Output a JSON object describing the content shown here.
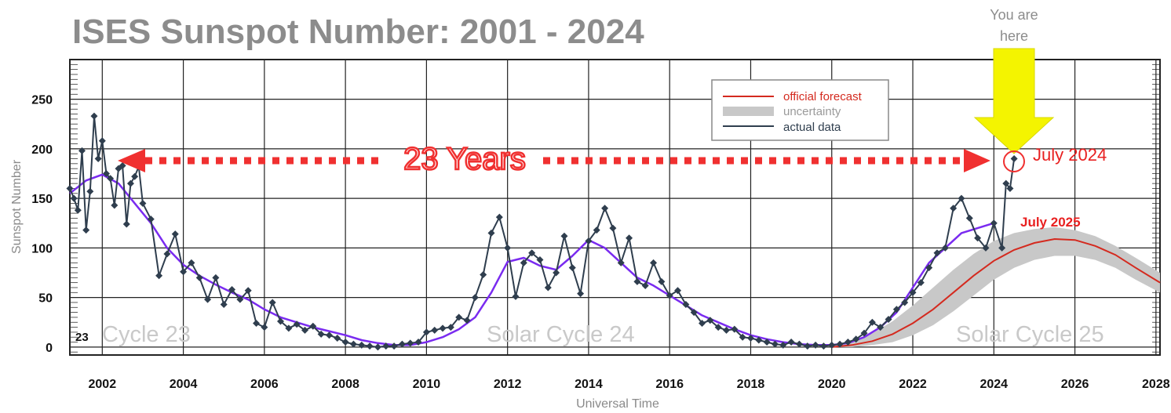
{
  "chart_data": {
    "type": "line",
    "title": "ISES Sunspot Number: 2001 - 2024",
    "xlabel": "Universal Time",
    "ylabel": "Sunspot Number",
    "xlim": [
      2001.2,
      2028.1
    ],
    "ylim": [
      -8,
      290
    ],
    "x_ticks": [
      "2002",
      "2004",
      "2006",
      "2008",
      "2010",
      "2012",
      "2014",
      "2016",
      "2018",
      "2020",
      "2022",
      "2024",
      "2026",
      "2028"
    ],
    "y_ticks": [
      "0",
      "50",
      "100",
      "150",
      "200",
      "250"
    ],
    "grid": true,
    "legend_position": "top-right",
    "legend": [
      {
        "label": "official forecast",
        "color": "#d42a1f"
      },
      {
        "label": "uncertainty",
        "color": "#c8c8c8"
      },
      {
        "label": "actual data",
        "color": "#2f3e4e"
      }
    ],
    "series": [
      {
        "name": "actual data",
        "color": "#2f3e4e",
        "x": [
          2001.2,
          2001.3,
          2001.4,
          2001.5,
          2001.6,
          2001.7,
          2001.8,
          2001.9,
          2002.0,
          2002.1,
          2002.2,
          2002.3,
          2002.4,
          2002.5,
          2002.6,
          2002.7,
          2002.8,
          2002.9,
          2003.0,
          2003.2,
          2003.4,
          2003.6,
          2003.8,
          2004.0,
          2004.2,
          2004.4,
          2004.6,
          2004.8,
          2005.0,
          2005.2,
          2005.4,
          2005.6,
          2005.8,
          2006.0,
          2006.2,
          2006.4,
          2006.6,
          2006.8,
          2007.0,
          2007.2,
          2007.4,
          2007.6,
          2007.8,
          2008.0,
          2008.2,
          2008.4,
          2008.6,
          2008.8,
          2009.0,
          2009.2,
          2009.4,
          2009.6,
          2009.8,
          2010.0,
          2010.2,
          2010.4,
          2010.6,
          2010.8,
          2011.0,
          2011.2,
          2011.4,
          2011.6,
          2011.8,
          2012.0,
          2012.2,
          2012.4,
          2012.6,
          2012.8,
          2013.0,
          2013.2,
          2013.4,
          2013.6,
          2013.8,
          2014.0,
          2014.2,
          2014.4,
          2014.6,
          2014.8,
          2015.0,
          2015.2,
          2015.4,
          2015.6,
          2015.8,
          2016.0,
          2016.2,
          2016.4,
          2016.6,
          2016.8,
          2017.0,
          2017.2,
          2017.4,
          2017.6,
          2017.8,
          2018.0,
          2018.2,
          2018.4,
          2018.6,
          2018.8,
          2019.0,
          2019.2,
          2019.4,
          2019.6,
          2019.8,
          2020.0,
          2020.2,
          2020.4,
          2020.6,
          2020.8,
          2021.0,
          2021.2,
          2021.4,
          2021.6,
          2021.8,
          2022.0,
          2022.2,
          2022.4,
          2022.6,
          2022.8,
          2023.0,
          2023.2,
          2023.4,
          2023.6,
          2023.8,
          2024.0,
          2024.2,
          2024.3,
          2024.4,
          2024.5
        ],
        "y": [
          160,
          150,
          138,
          198,
          118,
          157,
          233,
          190,
          208,
          175,
          170,
          143,
          180,
          183,
          124,
          165,
          172,
          182,
          145,
          129,
          72,
          94,
          114,
          76,
          85,
          70,
          48,
          70,
          43,
          58,
          48,
          57,
          24,
          20,
          45,
          26,
          19,
          23,
          17,
          21,
          13,
          12,
          9,
          5,
          3,
          2,
          1,
          0,
          1,
          1,
          3,
          4,
          5,
          15,
          17,
          19,
          20,
          30,
          27,
          50,
          73,
          115,
          131,
          100,
          51,
          85,
          95,
          88,
          60,
          75,
          112,
          80,
          54,
          107,
          118,
          140,
          120,
          85,
          110,
          66,
          62,
          85,
          66,
          52,
          57,
          43,
          35,
          24,
          27,
          20,
          17,
          18,
          10,
          9,
          7,
          5,
          3,
          2,
          5,
          3,
          1,
          2,
          1,
          2,
          3,
          5,
          8,
          14,
          25,
          20,
          28,
          38,
          45,
          55,
          65,
          80,
          95,
          100,
          140,
          150,
          130,
          110,
          100,
          125,
          100,
          165,
          160,
          190
        ]
      },
      {
        "name": "",
        "color": "#7a2bf0",
        "x": [
          2001.2,
          2001.6,
          2002.0,
          2002.4,
          2002.8,
          2003.2,
          2003.6,
          2004.0,
          2004.4,
          2004.8,
          2005.2,
          2005.6,
          2006.0,
          2006.4,
          2006.8,
          2007.2,
          2007.6,
          2008.0,
          2008.4,
          2008.8,
          2009.2,
          2009.6,
          2010.0,
          2010.4,
          2010.8,
          2011.2,
          2011.6,
          2012.0,
          2012.4,
          2012.8,
          2013.2,
          2013.6,
          2014.0,
          2014.4,
          2014.8,
          2015.2,
          2015.6,
          2016.0,
          2016.4,
          2016.8,
          2017.2,
          2017.6,
          2018.0,
          2018.4,
          2018.8,
          2019.2,
          2019.6,
          2020.0,
          2020.4,
          2020.8,
          2021.2,
          2021.6,
          2022.0,
          2022.4,
          2022.8,
          2023.2,
          2023.6,
          2024.0
        ],
        "y": [
          155,
          168,
          174,
          165,
          145,
          125,
          100,
          83,
          72,
          63,
          55,
          48,
          38,
          30,
          25,
          20,
          16,
          12,
          7,
          4,
          2,
          2,
          5,
          10,
          18,
          30,
          55,
          86,
          90,
          82,
          78,
          92,
          108,
          100,
          85,
          70,
          62,
          52,
          42,
          32,
          25,
          18,
          12,
          8,
          5,
          3,
          2,
          2,
          4,
          10,
          20,
          35,
          60,
          85,
          100,
          115,
          120,
          125
        ]
      },
      {
        "name": "official forecast",
        "color": "#d42a1f",
        "x": [
          2020.0,
          2020.5,
          2021.0,
          2021.5,
          2022.0,
          2022.5,
          2023.0,
          2023.5,
          2024.0,
          2024.5,
          2025.0,
          2025.5,
          2026.0,
          2026.5,
          2027.0,
          2027.5,
          2028.1
        ],
        "y": [
          0,
          2,
          6,
          13,
          24,
          38,
          55,
          72,
          87,
          98,
          105,
          109,
          108,
          102,
          93,
          80,
          65
        ]
      },
      {
        "name": "uncertainty",
        "color": "#c8c8c8",
        "x": [
          2020.0,
          2020.5,
          2021.0,
          2021.5,
          2022.0,
          2022.5,
          2023.0,
          2023.5,
          2024.0,
          2024.5,
          2025.0,
          2025.5,
          2026.0,
          2026.5,
          2027.0,
          2027.5,
          2028.1
        ],
        "upper": [
          2,
          5,
          14,
          26,
          42,
          60,
          78,
          94,
          107,
          115,
          119,
          121,
          118,
          112,
          102,
          90,
          75
        ],
        "lower": [
          0,
          0,
          2,
          5,
          12,
          22,
          36,
          52,
          68,
          80,
          88,
          92,
          92,
          88,
          80,
          68,
          55
        ]
      }
    ],
    "annotations": [
      {
        "text": "23 Years",
        "type": "double-arrow",
        "x_from": 2001.9,
        "x_to": 2024.3,
        "y": 193
      },
      {
        "text": "July 2024",
        "x": 2024.5,
        "y": 190
      },
      {
        "text": "July 2025",
        "x": 2025.5,
        "y": 109
      },
      {
        "text": "You are\nhere",
        "type": "down-arrow",
        "x": 2024.5
      },
      {
        "text": "Cycle 23",
        "x": 2003.5,
        "y": 15
      },
      {
        "text": "Solar Cycle 24",
        "x": 2014.0,
        "y": 15
      },
      {
        "text": "Solar Cycle 25",
        "x": 2025.3,
        "y": 15
      },
      {
        "text": "23",
        "x": 2001.5,
        "y": 12
      }
    ]
  }
}
